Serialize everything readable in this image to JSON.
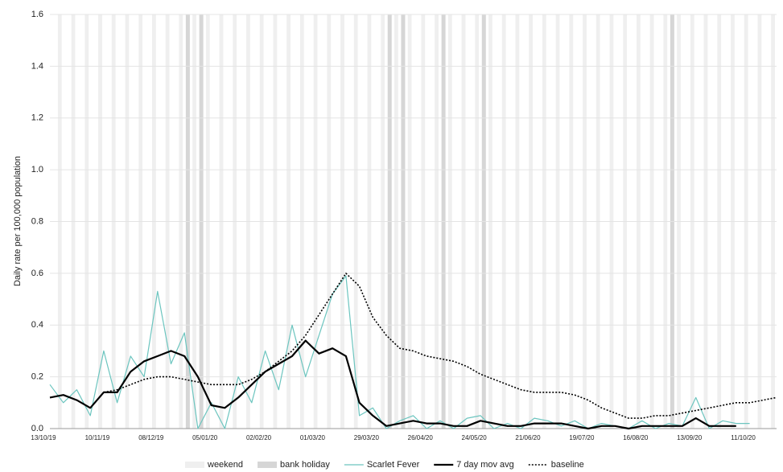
{
  "chart_data": {
    "type": "line",
    "y_label": "Daily rate per 100,000 population",
    "categories": [
      "13/10/19",
      null,
      null,
      null,
      "10/11/19",
      null,
      null,
      null,
      "08/12/19",
      null,
      null,
      null,
      "05/01/20",
      null,
      null,
      null,
      "02/02/20",
      null,
      null,
      null,
      "01/03/20",
      null,
      null,
      null,
      "29/03/20",
      null,
      null,
      null,
      "26/04/20",
      null,
      null,
      null,
      "24/05/20",
      null,
      null,
      null,
      "21/06/20",
      null,
      null,
      null,
      "19/07/20",
      null,
      null,
      null,
      "16/08/20",
      null,
      null,
      null,
      "13/09/20",
      null,
      null,
      null,
      "11/10/20",
      null,
      null
    ],
    "shading": [
      {
        "name": "weekend",
        "color": "#efefef"
      },
      {
        "name": "bank holiday",
        "color": "#d6d6d6",
        "values": [
          0,
          0,
          0,
          0,
          0,
          0,
          0,
          0,
          0,
          0,
          1,
          1,
          0,
          0,
          0,
          0,
          0,
          0,
          0,
          0,
          0,
          0,
          0,
          0,
          0,
          1,
          1,
          0,
          0,
          1,
          0,
          0,
          1,
          0,
          0,
          0,
          0,
          0,
          0,
          0,
          0,
          0,
          0,
          0,
          0,
          0,
          1,
          0,
          0,
          0,
          0,
          0,
          0,
          0,
          0
        ]
      }
    ],
    "series": [
      {
        "name": "Scarlet Fever",
        "color": "#6cc5bf",
        "width": 1.2,
        "dash": false,
        "values": [
          0.17,
          0.1,
          0.15,
          0.05,
          0.3,
          0.1,
          0.28,
          0.2,
          0.53,
          0.25,
          0.37,
          0.0,
          0.1,
          0.0,
          0.2,
          0.1,
          0.3,
          0.15,
          0.4,
          0.2,
          0.36,
          0.52,
          0.59,
          0.05,
          0.08,
          0.0,
          0.03,
          0.05,
          0.0,
          0.03,
          0.0,
          0.04,
          0.05,
          0.0,
          0.02,
          0.0,
          0.04,
          0.03,
          0.01,
          0.03,
          0.0,
          0.02,
          0.01,
          0.0,
          0.03,
          0.0,
          0.02,
          0.01,
          0.12,
          0.0,
          0.03,
          0.02,
          0.02,
          null,
          null
        ]
      },
      {
        "name": "7 day mov avg",
        "color": "#000000",
        "width": 2.2,
        "dash": false,
        "values": [
          0.12,
          0.13,
          0.11,
          0.08,
          0.14,
          0.14,
          0.22,
          0.26,
          0.28,
          0.3,
          0.28,
          0.2,
          0.09,
          0.08,
          0.12,
          0.17,
          0.22,
          0.25,
          0.28,
          0.34,
          0.29,
          0.31,
          0.28,
          0.1,
          0.05,
          0.01,
          0.02,
          0.03,
          0.02,
          0.02,
          0.01,
          0.01,
          0.03,
          0.02,
          0.01,
          0.01,
          0.02,
          0.02,
          0.02,
          0.01,
          0.0,
          0.01,
          0.01,
          0.0,
          0.01,
          0.01,
          0.01,
          0.01,
          0.04,
          0.01,
          0.01,
          0.01,
          null,
          null,
          null
        ]
      },
      {
        "name": "baseline",
        "color": "#000000",
        "width": 1.6,
        "dash": true,
        "values": [
          null,
          null,
          null,
          null,
          0.14,
          0.15,
          0.17,
          0.19,
          0.2,
          0.2,
          0.19,
          0.18,
          0.17,
          0.17,
          0.17,
          0.19,
          0.22,
          0.26,
          0.3,
          0.36,
          0.44,
          0.52,
          0.6,
          0.55,
          0.43,
          0.36,
          0.31,
          0.3,
          0.28,
          0.27,
          0.26,
          0.24,
          0.21,
          0.19,
          0.17,
          0.15,
          0.14,
          0.14,
          0.14,
          0.13,
          0.11,
          0.08,
          0.06,
          0.04,
          0.04,
          0.05,
          0.05,
          0.06,
          0.07,
          0.08,
          0.09,
          0.1,
          0.1,
          0.11,
          0.12
        ]
      }
    ],
    "ylim": [
      0,
      1.6
    ],
    "yticks": [
      {
        "value": 0,
        "label": "0.0"
      },
      0.2,
      0.4,
      0.6,
      0.8,
      {
        "value": 1,
        "label": "1.0"
      },
      1.2,
      1.4,
      1.6
    ],
    "grid": true
  }
}
